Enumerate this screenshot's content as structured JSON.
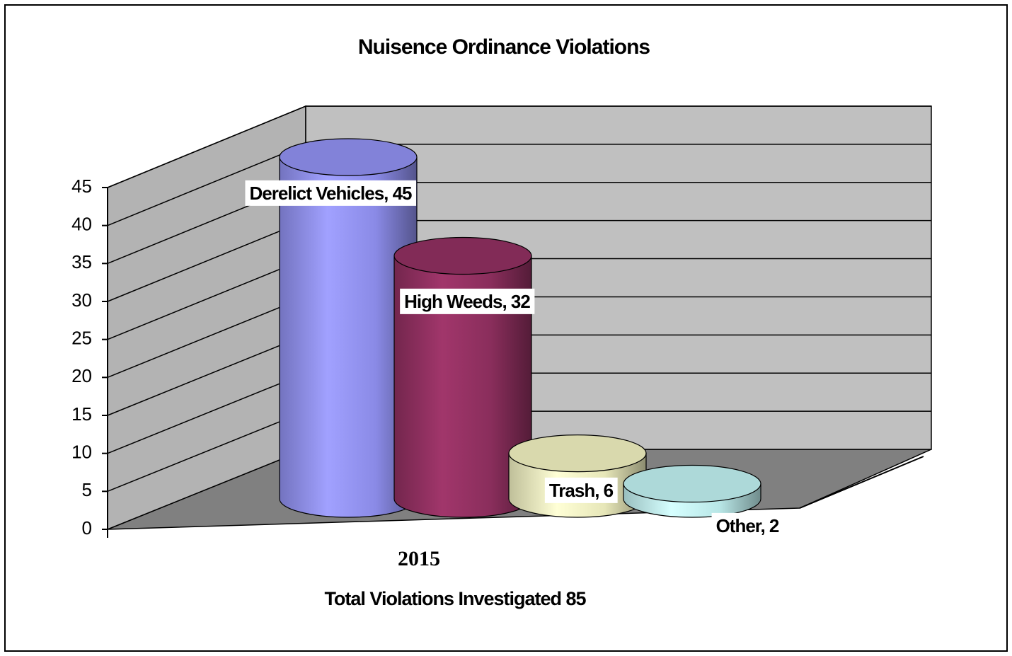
{
  "chart_data": {
    "type": "bar",
    "title": "Nuisence Ordinance Violations",
    "x_label": "Total Violations Investigated 85",
    "categories": [
      "2015"
    ],
    "series": [
      {
        "name": "Derelict Vehicles",
        "color": "#9999ff",
        "values": [
          45
        ],
        "value_labels": [
          "Derelict Vehicles, 45"
        ]
      },
      {
        "name": "High Weeds",
        "color": "#993366",
        "values": [
          32
        ],
        "value_labels": [
          "High Weeds, 32"
        ]
      },
      {
        "name": "Trash",
        "color": "#ffffcc",
        "values": [
          6
        ],
        "value_labels": [
          "Trash, 6"
        ]
      },
      {
        "name": "Other",
        "color": "#ccffff",
        "values": [
          2
        ],
        "value_labels": [
          "Other, 2"
        ]
      }
    ],
    "ylim": [
      0,
      45
    ],
    "yticks": [
      0,
      5,
      10,
      15,
      20,
      25,
      30,
      35,
      40,
      45
    ],
    "grid": true
  }
}
